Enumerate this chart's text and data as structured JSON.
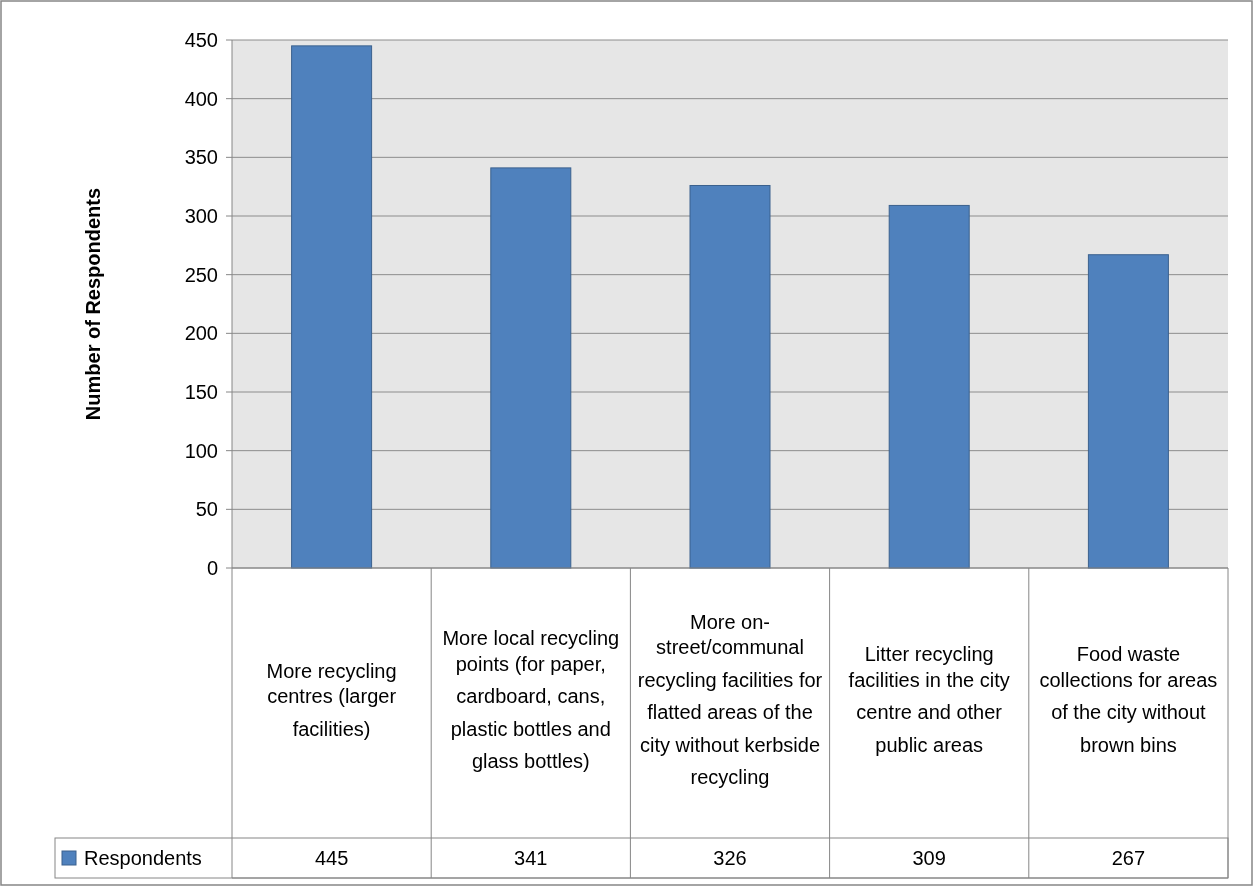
{
  "chart_data": {
    "type": "bar",
    "ylabel": "Number of Respondents",
    "categories": [
      "More recycling centres (larger facilities)",
      "More local recycling points (for paper, cardboard, cans, plastic bottles and glass bottles)",
      "More on-street/communal recycling facilities for flatted areas of the city without kerbside recycling",
      "Litter recycling facilities in the city centre and other public areas",
      "Food waste collections for areas of the city without brown bins"
    ],
    "series": [
      {
        "name": "Respondents",
        "color": "#4f81bd",
        "values": [
          445,
          341,
          326,
          309,
          267
        ]
      }
    ],
    "ylim": [
      0,
      450
    ],
    "yticks": [
      0,
      50,
      100,
      150,
      200,
      250,
      300,
      350,
      400,
      450
    ],
    "grid": "y",
    "legend": "bottom",
    "data_labels": true
  }
}
